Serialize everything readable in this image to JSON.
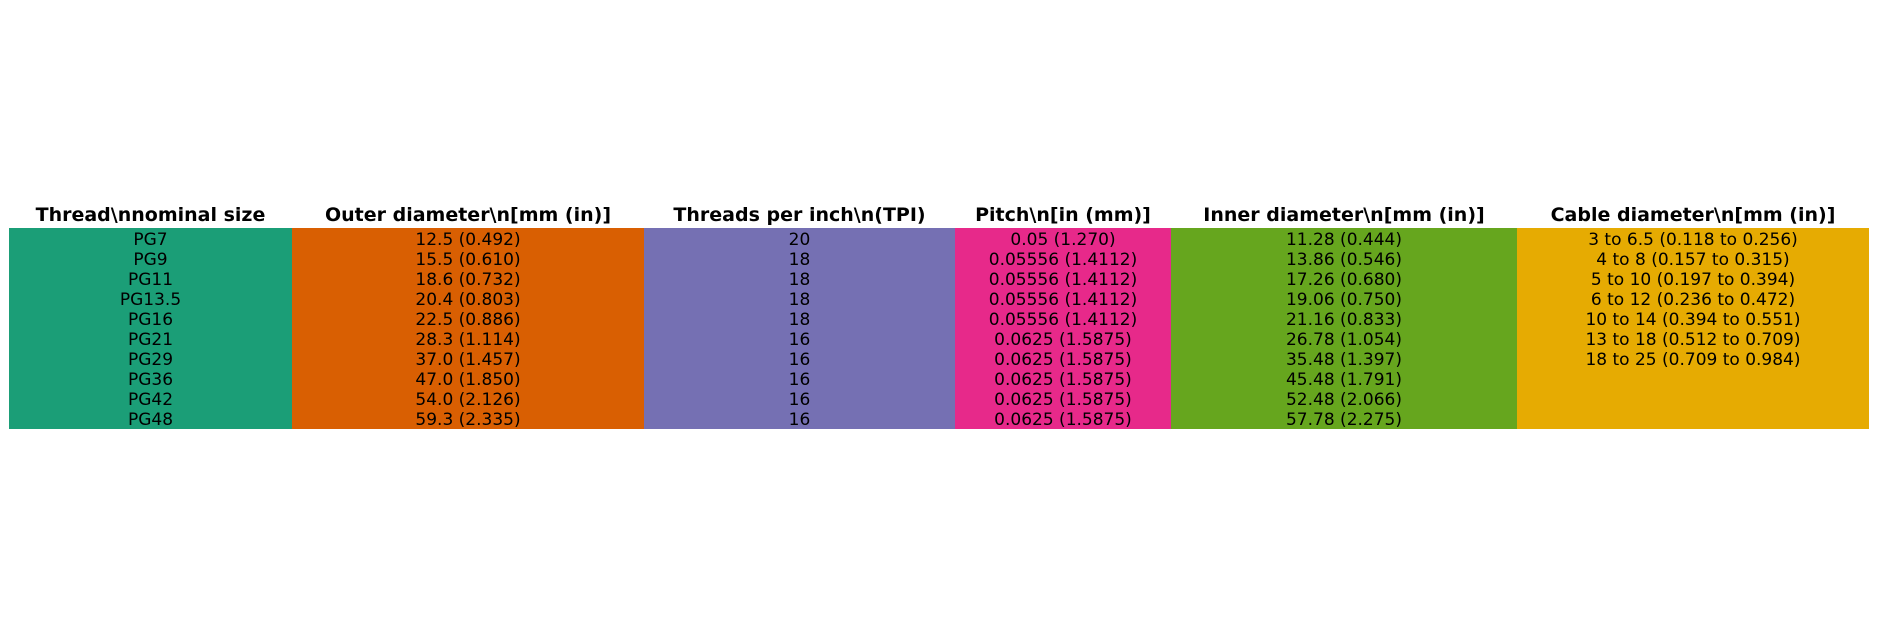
{
  "chart_data": {
    "type": "table",
    "columns": [
      {
        "header": "Thread\\nnominal size",
        "color": "#1b9e77",
        "cells": [
          "PG7",
          "PG9",
          "PG11",
          "PG13.5",
          "PG16",
          "PG21",
          "PG29",
          "PG36",
          "PG42",
          "PG48"
        ]
      },
      {
        "header": "Outer diameter\\n[mm (in)]",
        "color": "#d95f02",
        "cells": [
          "12.5 (0.492)",
          "15.5 (0.610)",
          "18.6 (0.732)",
          "20.4 (0.803)",
          "22.5 (0.886)",
          "28.3 (1.114)",
          "37.0 (1.457)",
          "47.0 (1.850)",
          "54.0 (2.126)",
          "59.3 (2.335)"
        ]
      },
      {
        "header": "Threads per inch\\n(TPI)",
        "color": "#7570b3",
        "cells": [
          "20",
          "18",
          "18",
          "18",
          "18",
          "16",
          "16",
          "16",
          "16",
          "16"
        ]
      },
      {
        "header": "Pitch\\n[in (mm)]",
        "color": "#e7298a",
        "cells": [
          "0.05 (1.270)",
          "0.05556 (1.4112)",
          "0.05556 (1.4112)",
          "0.05556 (1.4112)",
          "0.05556 (1.4112)",
          "0.0625 (1.5875)",
          "0.0625 (1.5875)",
          "0.0625 (1.5875)",
          "0.0625 (1.5875)",
          "0.0625 (1.5875)"
        ]
      },
      {
        "header": "Inner diameter\\n[mm (in)]",
        "color": "#66a61e",
        "cells": [
          "11.28 (0.444)",
          "13.86 (0.546)",
          "17.26 (0.680)",
          "19.06 (0.750)",
          "21.16 (0.833)",
          "26.78 (1.054)",
          "35.48 (1.397)",
          "45.48 (1.791)",
          "52.48 (2.066)",
          "57.78 (2.275)"
        ]
      },
      {
        "header": "Cable diameter\\n[mm (in)]",
        "color": "#e6ab02",
        "cells": [
          "3 to 6.5 (0.118 to 0.256)",
          "4 to 8 (0.157 to 0.315)",
          "5 to 10 (0.197 to 0.394)",
          "6 to 12 (0.236 to 0.472)",
          "10 to 14 (0.394 to 0.551)",
          "13 to 18 (0.512 to 0.709)",
          "18 to 25 (0.709 to 0.984)"
        ]
      }
    ]
  }
}
